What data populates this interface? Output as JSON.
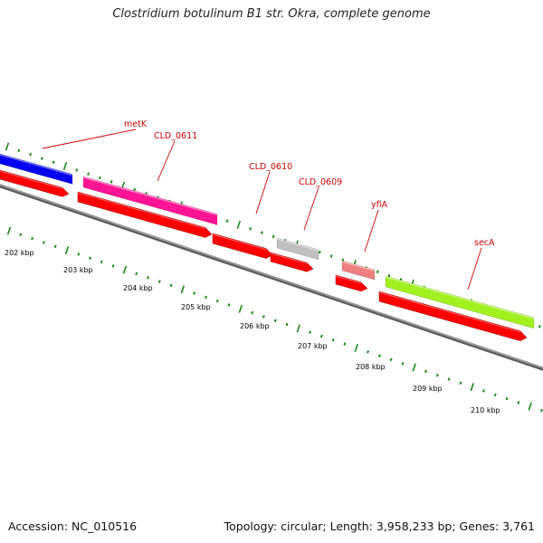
{
  "title": "Clostridium botulinum B1 str. Okra, complete genome",
  "footer": {
    "accession": "Accession: NC_010516",
    "summary": "Topology: circular; Length: 3,958,233 bp; Genes: 3,761"
  },
  "colors": {
    "backbone": "#808080",
    "label_red": "#cc0000",
    "tick_green": "#1a8a1a",
    "cds_red": "#ff0000"
  },
  "scale_labels": [
    "202 kbp",
    "203 kbp",
    "204 kbp",
    "205 kbp",
    "206 kbp",
    "207 kbp",
    "208 kbp",
    "209 kbp",
    "210 kbp"
  ],
  "genes": [
    {
      "name": "metK",
      "color": "#0000ee"
    },
    {
      "name": "CLD_0611",
      "color": "#ff1493"
    },
    {
      "name": "CLD_0610",
      "color": null
    },
    {
      "name": "CLD_0609",
      "color": "#c0c0c0"
    },
    {
      "name": "yfiA",
      "color": "#f08080"
    },
    {
      "name": "secA",
      "color": "#a2f020"
    }
  ]
}
